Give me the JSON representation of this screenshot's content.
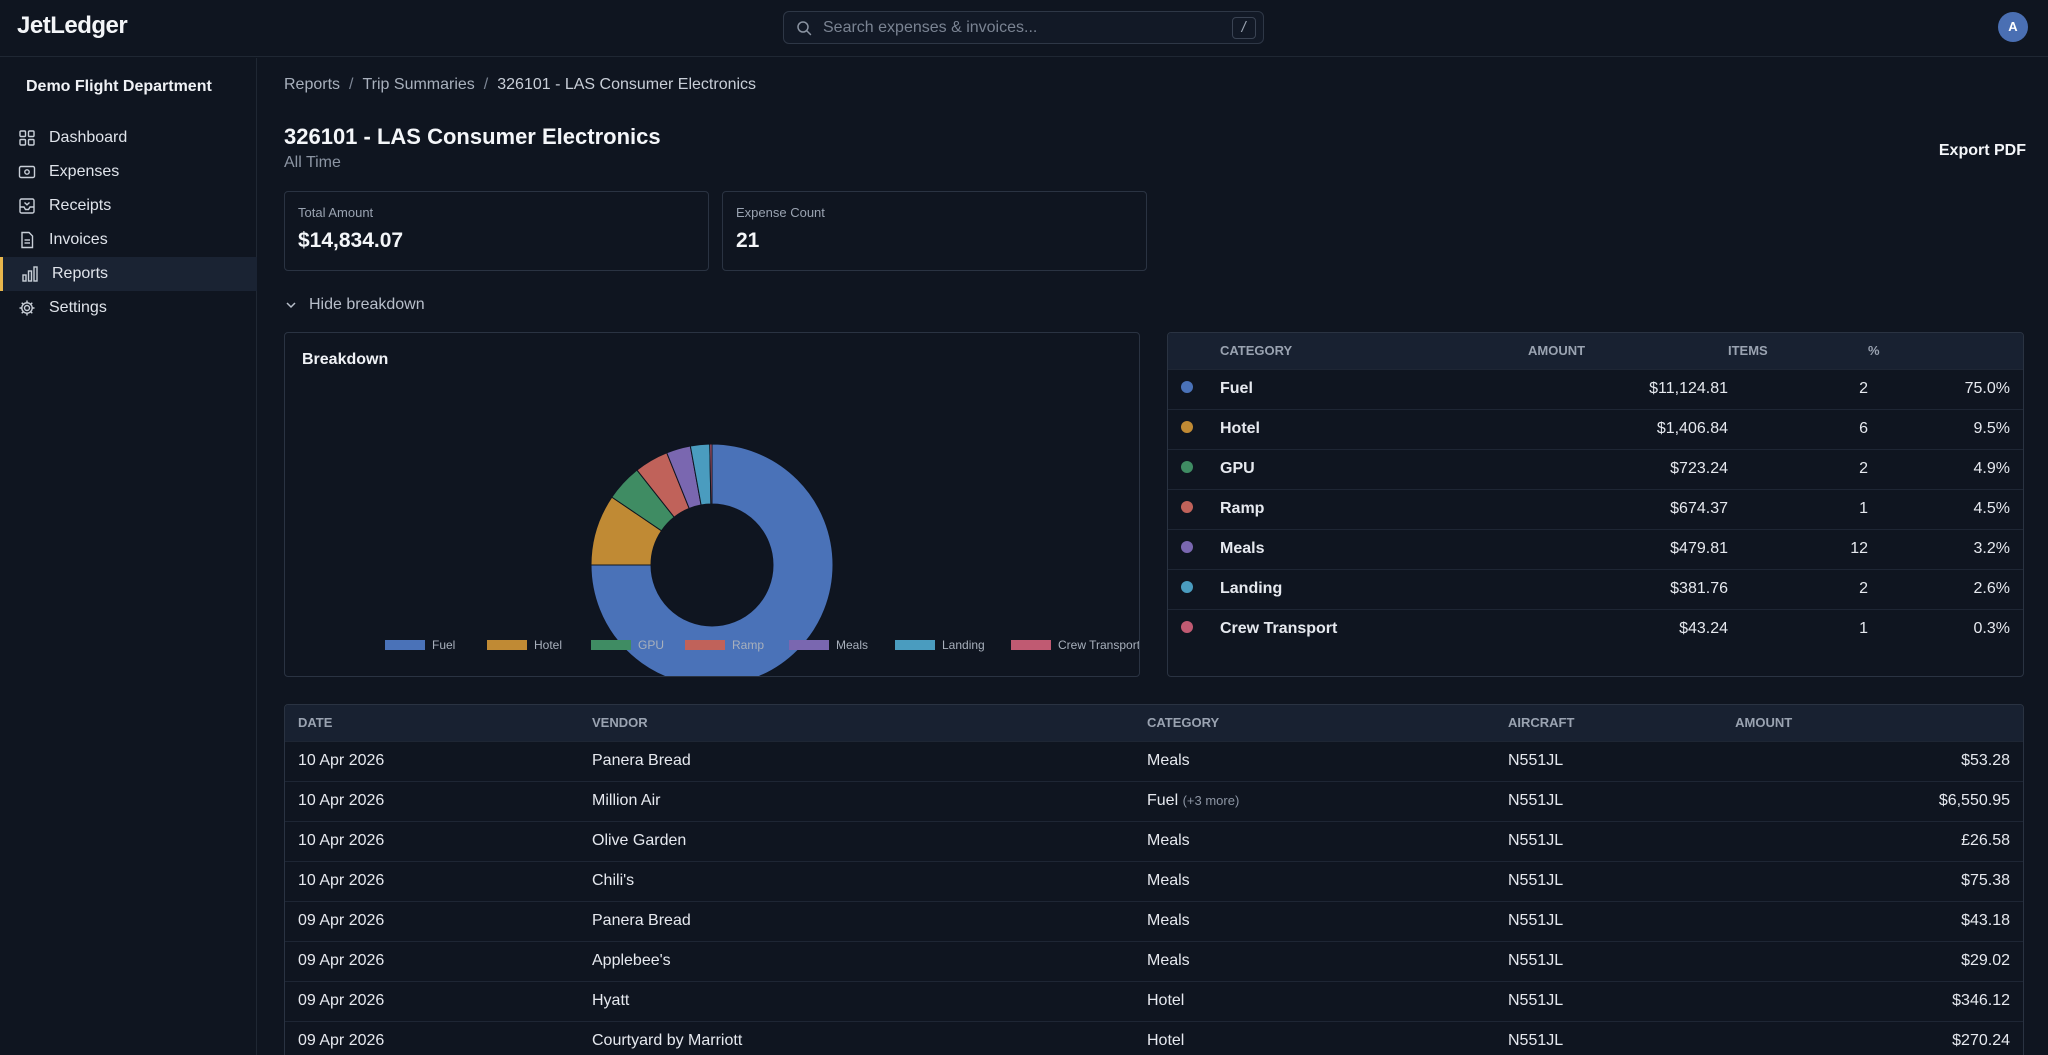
{
  "app": {
    "logo": "JetLedger"
  },
  "search": {
    "placeholder": "Search expenses & invoices...",
    "shortcut": "/"
  },
  "user": {
    "avatar_initial": "A"
  },
  "sidebar": {
    "org": "Demo Flight Department",
    "items": [
      {
        "label": "Dashboard",
        "icon": "grid-icon"
      },
      {
        "label": "Expenses",
        "icon": "wallet-icon"
      },
      {
        "label": "Receipts",
        "icon": "inbox-icon"
      },
      {
        "label": "Invoices",
        "icon": "file-icon"
      },
      {
        "label": "Reports",
        "icon": "bar-chart-icon",
        "active": true
      },
      {
        "label": "Settings",
        "icon": "gear-icon"
      }
    ]
  },
  "breadcrumb": {
    "items": [
      "Reports",
      "Trip Summaries",
      "326101 - LAS Consumer Electronics"
    ],
    "separator": "/"
  },
  "page": {
    "title": "326101 - LAS Consumer Electronics",
    "subtitle": "All Time",
    "export_label": "Export PDF"
  },
  "stats": {
    "total": {
      "label": "Total Amount",
      "value": "$14,834.07"
    },
    "count": {
      "label": "Expense Count",
      "value": "21"
    }
  },
  "breakdown_toggle": {
    "label": "Hide breakdown"
  },
  "breakdown": {
    "title": "Breakdown"
  },
  "chart_data": {
    "type": "pie",
    "donut": true,
    "legend_position": "bottom",
    "title": "Breakdown",
    "categories": [
      "Fuel",
      "Hotel",
      "GPU",
      "Ramp",
      "Meals",
      "Landing",
      "Crew Transport"
    ],
    "values": [
      11124.81,
      1406.84,
      723.24,
      674.37,
      479.81,
      381.76,
      43.24
    ],
    "colors": [
      "#4a72b8",
      "#c08a34",
      "#3f8c63",
      "#c0625a",
      "#7a67b0",
      "#4a9cbf",
      "#c05a72"
    ]
  },
  "category_table": {
    "headers": {
      "category": "CATEGORY",
      "amount": "AMOUNT",
      "items": "ITEMS",
      "pct": "%"
    },
    "rows": [
      {
        "category": "Fuel",
        "amount": "$11,124.81",
        "items": "2",
        "pct": "75.0%",
        "color": "#4a72b8"
      },
      {
        "category": "Hotel",
        "amount": "$1,406.84",
        "items": "6",
        "pct": "9.5%",
        "color": "#c08a34"
      },
      {
        "category": "GPU",
        "amount": "$723.24",
        "items": "2",
        "pct": "4.9%",
        "color": "#3f8c63"
      },
      {
        "category": "Ramp",
        "amount": "$674.37",
        "items": "1",
        "pct": "4.5%",
        "color": "#c0625a"
      },
      {
        "category": "Meals",
        "amount": "$479.81",
        "items": "12",
        "pct": "3.2%",
        "color": "#7a67b0"
      },
      {
        "category": "Landing",
        "amount": "$381.76",
        "items": "2",
        "pct": "2.6%",
        "color": "#4a9cbf"
      },
      {
        "category": "Crew Transport",
        "amount": "$43.24",
        "items": "1",
        "pct": "0.3%",
        "color": "#c05a72"
      }
    ]
  },
  "expense_table": {
    "headers": {
      "date": "DATE",
      "vendor": "VENDOR",
      "category": "CATEGORY",
      "aircraft": "AIRCRAFT",
      "amount": "AMOUNT"
    },
    "rows": [
      {
        "date": "10 Apr 2026",
        "vendor": "Panera Bread",
        "category": "Meals",
        "more": "",
        "aircraft": "N551JL",
        "amount": "$53.28"
      },
      {
        "date": "10 Apr 2026",
        "vendor": "Million Air",
        "category": "Fuel",
        "more": "(+3 more)",
        "aircraft": "N551JL",
        "amount": "$6,550.95"
      },
      {
        "date": "10 Apr 2026",
        "vendor": "Olive Garden",
        "category": "Meals",
        "more": "",
        "aircraft": "N551JL",
        "amount": "£26.58"
      },
      {
        "date": "10 Apr 2026",
        "vendor": "Chili's",
        "category": "Meals",
        "more": "",
        "aircraft": "N551JL",
        "amount": "$75.38"
      },
      {
        "date": "09 Apr 2026",
        "vendor": "Panera Bread",
        "category": "Meals",
        "more": "",
        "aircraft": "N551JL",
        "amount": "$43.18"
      },
      {
        "date": "09 Apr 2026",
        "vendor": "Applebee's",
        "category": "Meals",
        "more": "",
        "aircraft": "N551JL",
        "amount": "$29.02"
      },
      {
        "date": "09 Apr 2026",
        "vendor": "Hyatt",
        "category": "Hotel",
        "more": "",
        "aircraft": "N551JL",
        "amount": "$346.12"
      },
      {
        "date": "09 Apr 2026",
        "vendor": "Courtyard by Marriott",
        "category": "Hotel",
        "more": "",
        "aircraft": "N551JL",
        "amount": "$270.24"
      }
    ]
  }
}
